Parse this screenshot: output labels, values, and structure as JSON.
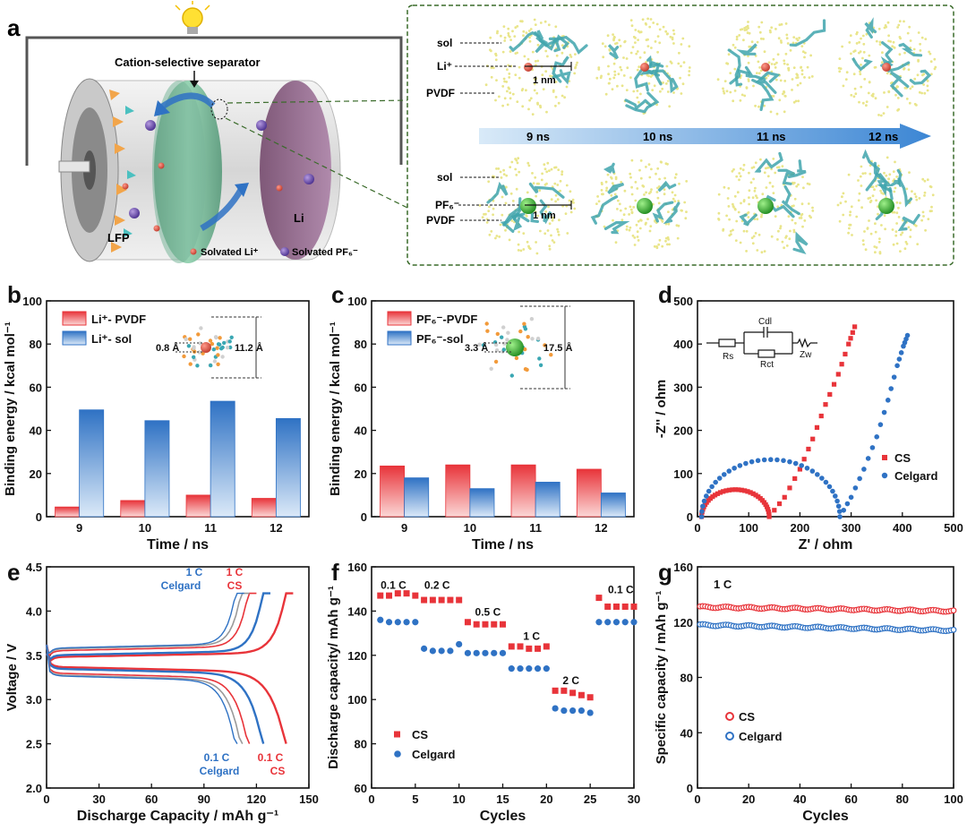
{
  "panel_a": {
    "letter": "a",
    "separator_label": "Cation-selective separator",
    "lfp_label": "LFP",
    "li_label": "Li",
    "legend_li": "Solvated Li⁺",
    "legend_pf6": "Solvated PF₆⁻",
    "md": {
      "row1_labels": [
        "sol",
        "Li⁺",
        "PVDF"
      ],
      "row2_labels": [
        "sol",
        "PF₆⁻",
        "PVDF"
      ],
      "scale_text": "1 nm",
      "times": [
        "9 ns",
        "10 ns",
        "11 ns",
        "12 ns"
      ]
    }
  },
  "colors": {
    "red": "#e8343a",
    "blue": "#2f72c4",
    "gray": "#9a9a9a"
  },
  "chart_data": [
    {
      "id": "b",
      "letter": "b",
      "type": "bar",
      "ylabel": "Binding energy / kcal mol⁻¹",
      "xlabel": "Time / ns",
      "categories": [
        "9",
        "10",
        "11",
        "12"
      ],
      "ylim": [
        0,
        100
      ],
      "yticks": [
        "0",
        "20",
        "40",
        "60",
        "80",
        "100"
      ],
      "series": [
        {
          "name": "Li⁺- PVDF",
          "values": [
            4.5,
            7.5,
            10,
            8.5
          ],
          "color": "#e8343a"
        },
        {
          "name": "Li⁺- sol",
          "values": [
            49.5,
            44.5,
            53.5,
            45.5
          ],
          "color": "#2f72c4"
        }
      ],
      "inset": {
        "label1": "0.8 Å",
        "label2": "11.2 Å"
      }
    },
    {
      "id": "c",
      "letter": "c",
      "type": "bar",
      "ylabel": "Binding energy / kcal mol⁻¹",
      "xlabel": "Time / ns",
      "categories": [
        "9",
        "10",
        "11",
        "12"
      ],
      "ylim": [
        0,
        100
      ],
      "yticks": [
        "0",
        "20",
        "40",
        "60",
        "80",
        "100"
      ],
      "series": [
        {
          "name": "PF₆⁻-PVDF",
          "values": [
            23.5,
            24,
            24,
            22
          ],
          "color": "#e8343a"
        },
        {
          "name": "PF₆⁻-sol",
          "values": [
            18,
            13,
            16,
            11
          ],
          "color": "#2f72c4"
        }
      ],
      "inset": {
        "label1": "3.3 Å",
        "label2": "17.5 Å"
      }
    },
    {
      "id": "d",
      "letter": "d",
      "type": "scatter",
      "ylabel": "-Z'' / ohm",
      "xlabel": "Z' / ohm",
      "xlim": [
        0,
        500
      ],
      "ylim": [
        0,
        500
      ],
      "xticks": [
        "0",
        "100",
        "200",
        "300",
        "400",
        "500"
      ],
      "yticks": [
        "0",
        "100",
        "200",
        "300",
        "400",
        "500"
      ],
      "circuit": {
        "Rs": "Rs",
        "Cdl": "Cdl",
        "Rct": "Rct",
        "Zw": "Zw"
      },
      "series": [
        {
          "name": "CS",
          "color": "#e8343a",
          "marker": "square",
          "rs": 8,
          "rct": 140,
          "tail": [
            [
              140,
              0
            ],
            [
              170,
              45
            ],
            [
              200,
              110
            ],
            [
              225,
              180
            ],
            [
              250,
              260
            ],
            [
              275,
              330
            ],
            [
              295,
              400
            ],
            [
              307,
              440
            ]
          ]
        },
        {
          "name": "Celgard",
          "color": "#2f72c4",
          "marker": "circle",
          "rs": 8,
          "rct": 278,
          "tail": [
            [
              278,
              0
            ],
            [
              300,
              45
            ],
            [
              325,
              110
            ],
            [
              350,
              185
            ],
            [
              372,
              270
            ],
            [
              390,
              350
            ],
            [
              402,
              395
            ],
            [
              410,
              420
            ]
          ]
        }
      ]
    },
    {
      "id": "e",
      "letter": "e",
      "type": "line",
      "ylabel": "Voltage / V",
      "xlabel": "Discharge Capacity / mAh g⁻¹",
      "xlim": [
        0,
        150
      ],
      "ylim": [
        2.0,
        4.5
      ],
      "xticks": [
        "0",
        "30",
        "60",
        "90",
        "120",
        "150"
      ],
      "yticks": [
        "2.0",
        "2.5",
        "3.0",
        "3.5",
        "4.0",
        "4.5"
      ],
      "annotations": [
        {
          "line1": "1 C",
          "line2": "Celgard",
          "color": "#2f72c4"
        },
        {
          "line1": "1 C",
          "line2": "CS",
          "color": "#e8343a"
        },
        {
          "line1": "0.1 C",
          "line2": "Celgard",
          "color": "#2f72c4"
        },
        {
          "line1": "0.1 C",
          "line2": "CS",
          "color": "#e8343a"
        }
      ],
      "series": [
        {
          "name": "CS 0.1 C",
          "color": "#e8343a",
          "qmax": 137,
          "charge_v": 3.48,
          "discharge_v": 3.37,
          "width": 2.4
        },
        {
          "name": "Celgard 0.1 C",
          "color": "#2f72c4",
          "qmax": 124,
          "charge_v": 3.5,
          "discharge_v": 3.35,
          "width": 2.4
        },
        {
          "name": "CS 1 C",
          "color": "#e8343a",
          "qmax": 116,
          "charge_v": 3.55,
          "discharge_v": 3.3,
          "width": 1.6
        },
        {
          "name": "Celgard 1 C",
          "color": "#9a9a9a",
          "qmax": 112,
          "charge_v": 3.57,
          "discharge_v": 3.28,
          "width": 1.6
        },
        {
          "name": "Celgard 1 C b",
          "color": "#2f72c4",
          "qmax": 109,
          "charge_v": 3.58,
          "discharge_v": 3.27,
          "width": 1.4
        }
      ]
    },
    {
      "id": "f",
      "letter": "f",
      "type": "scatter",
      "ylabel": "Discharge capacity/ mAh g⁻¹",
      "xlabel": "Cycles",
      "xlim": [
        0,
        30
      ],
      "ylim": [
        60,
        160
      ],
      "xticks": [
        "0",
        "5",
        "10",
        "15",
        "20",
        "25",
        "30"
      ],
      "yticks": [
        "60",
        "80",
        "100",
        "120",
        "140",
        "160"
      ],
      "rate_labels": [
        {
          "text": "0.1 C",
          "x": 2.5,
          "y": 150
        },
        {
          "text": "0.2 C",
          "x": 7.5,
          "y": 150
        },
        {
          "text": "0.5 C",
          "x": 13.3,
          "y": 138
        },
        {
          "text": "1 C",
          "x": 18.3,
          "y": 127
        },
        {
          "text": "2 C",
          "x": 22.8,
          "y": 107
        },
        {
          "text": "0.1 C",
          "x": 28.5,
          "y": 148
        }
      ],
      "series": [
        {
          "name": "CS",
          "color": "#e8343a",
          "marker": "square",
          "x": [
            1,
            2,
            3,
            4,
            5,
            6,
            7,
            8,
            9,
            10,
            11,
            12,
            13,
            14,
            15,
            16,
            17,
            18,
            19,
            20,
            21,
            22,
            23,
            24,
            25,
            26,
            27,
            28,
            29,
            30
          ],
          "values": [
            147,
            147,
            148,
            148,
            147,
            145,
            145,
            145,
            145,
            145,
            135,
            134,
            134,
            134,
            134,
            124,
            124,
            123,
            123,
            124,
            104,
            104,
            103,
            102,
            101,
            146,
            142,
            142,
            142,
            142
          ]
        },
        {
          "name": "Celgard",
          "color": "#2f72c4",
          "marker": "circle",
          "x": [
            1,
            2,
            3,
            4,
            5,
            6,
            7,
            8,
            9,
            10,
            11,
            12,
            13,
            14,
            15,
            16,
            17,
            18,
            19,
            20,
            21,
            22,
            23,
            24,
            25,
            26,
            27,
            28,
            29,
            30
          ],
          "values": [
            136,
            135,
            135,
            135,
            135,
            123,
            122,
            122,
            122,
            125,
            121,
            121,
            121,
            121,
            121,
            114,
            114,
            114,
            114,
            114,
            96,
            95,
            95,
            95,
            94,
            135,
            135,
            135,
            135,
            135
          ]
        }
      ]
    },
    {
      "id": "g",
      "letter": "g",
      "type": "scatter",
      "ylabel": "Specific capacity / mAh g⁻¹",
      "xlabel": "Cycles",
      "xlim": [
        0,
        100
      ],
      "ylim": [
        0,
        160
      ],
      "xticks": [
        "0",
        "20",
        "40",
        "60",
        "80",
        "100"
      ],
      "yticks": [
        "0",
        "40",
        "80",
        "120",
        "160"
      ],
      "rate_label": "1 C",
      "series": [
        {
          "name": "CS",
          "color": "#e8343a",
          "start": 131,
          "end": 128
        },
        {
          "name": "Celgard",
          "color": "#2f72c4",
          "start": 118,
          "end": 114
        }
      ]
    }
  ]
}
